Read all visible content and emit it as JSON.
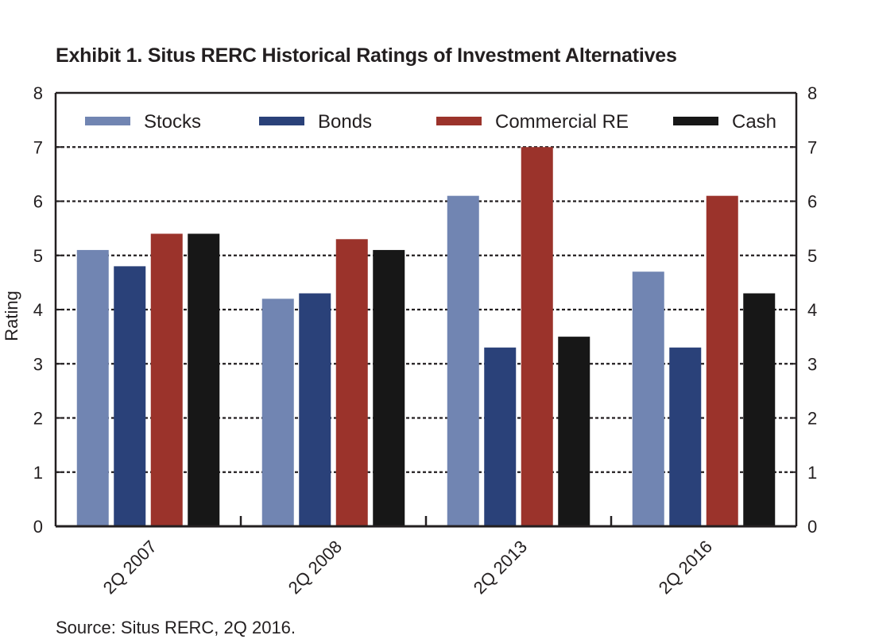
{
  "chart_data": {
    "type": "bar",
    "title": "Exhibit 1. Situs RERC Historical Ratings of Investment Alternatives",
    "ylabel": "Rating",
    "xlabel": "",
    "categories": [
      "2Q 2007",
      "2Q 2008",
      "2Q 2013",
      "2Q 2016"
    ],
    "series": [
      {
        "name": "Stocks",
        "color": "#7185b2",
        "values": [
          5.1,
          4.2,
          6.1,
          4.7
        ]
      },
      {
        "name": "Bonds",
        "color": "#2a4179",
        "values": [
          4.8,
          4.3,
          3.3,
          3.3
        ]
      },
      {
        "name": "Commercial RE",
        "color": "#9b332b",
        "values": [
          5.4,
          5.3,
          7.0,
          6.1
        ]
      },
      {
        "name": "Cash",
        "color": "#171717",
        "values": [
          5.4,
          5.1,
          3.5,
          4.3
        ]
      }
    ],
    "ylim": [
      0,
      8
    ],
    "yticks": [
      "0",
      "1",
      "2",
      "3",
      "4",
      "5",
      "6",
      "7",
      "8"
    ],
    "secondary_y_axis": true,
    "grid": "dotted horizontal",
    "legend": "top"
  },
  "source": "Source: Situs RERC, 2Q 2016."
}
